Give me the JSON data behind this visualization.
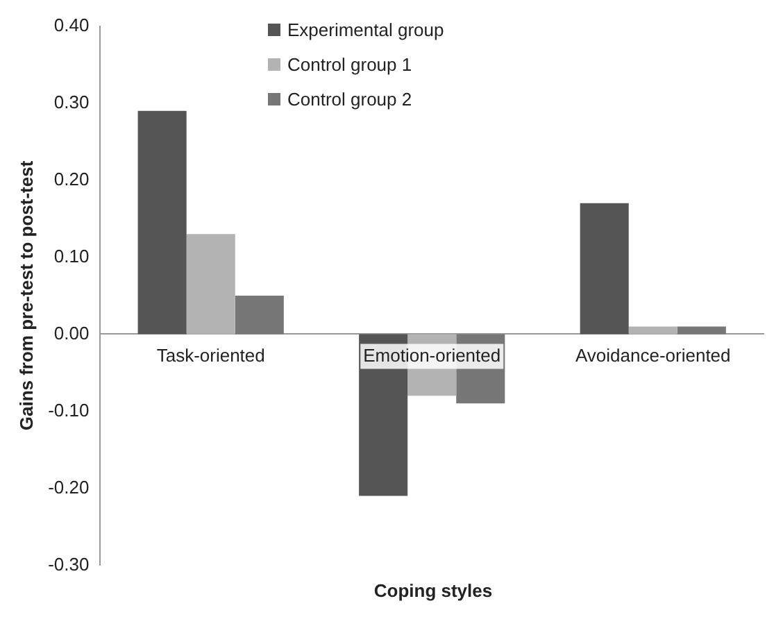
{
  "chart_data": {
    "type": "bar",
    "xlabel": "Coping styles",
    "ylabel": "Gains from pre-test to post-test",
    "categories": [
      "Task-oriented",
      "Emotion-oriented",
      "Avoidance-oriented"
    ],
    "series": [
      {
        "name": "Experimental group",
        "color": "#555555",
        "values": [
          0.29,
          -0.21,
          0.17
        ]
      },
      {
        "name": "Control group 1",
        "color": "#b3b3b3",
        "values": [
          0.13,
          -0.08,
          0.01
        ]
      },
      {
        "name": "Control group 2",
        "color": "#777777",
        "values": [
          0.05,
          -0.09,
          0.01
        ]
      }
    ],
    "ylim": [
      -0.3,
      0.4
    ],
    "yticks": [
      {
        "value": -0.3,
        "label": "-0.30"
      },
      {
        "value": -0.2,
        "label": "-0.20"
      },
      {
        "value": -0.1,
        "label": "-0.10"
      },
      {
        "value": 0,
        "label": "0.00"
      },
      {
        "value": 0.1,
        "label": "0.10"
      },
      {
        "value": 0.2,
        "label": "0.20"
      },
      {
        "value": 0.3,
        "label": "0.30"
      },
      {
        "value": 0.4,
        "label": "0.40"
      }
    ],
    "grid": false,
    "legend": "top"
  }
}
